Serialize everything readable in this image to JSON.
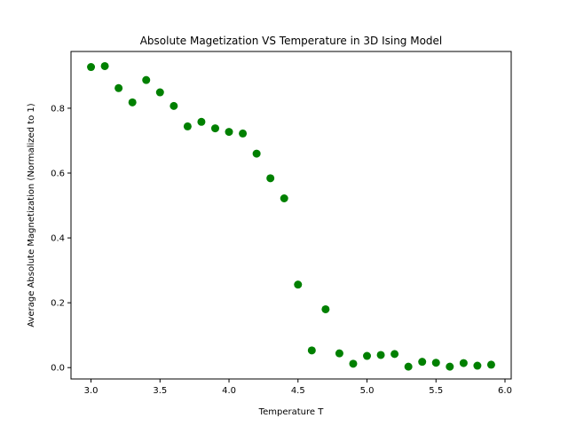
{
  "chart_data": {
    "type": "scatter",
    "title": "Absolute Magetization VS Temperature in 3D Ising Model",
    "xlabel": "Temperature T",
    "ylabel": "Average Absolute Magnetization (Normalized to 1)",
    "xlim": [
      2.855,
      6.045
    ],
    "ylim": [
      -0.035,
      0.975
    ],
    "xticks": [
      3.0,
      3.5,
      4.0,
      4.5,
      5.0,
      5.5,
      6.0
    ],
    "xtick_labels": [
      "3.0",
      "3.5",
      "4.0",
      "4.5",
      "5.0",
      "5.5",
      "6.0"
    ],
    "yticks": [
      0.0,
      0.2,
      0.4,
      0.6,
      0.8
    ],
    "ytick_labels": [
      "0.0",
      "0.2",
      "0.4",
      "0.6",
      "0.8"
    ],
    "grid": false,
    "marker_color": "#008000",
    "series": [
      {
        "x": [
          3.0,
          3.1,
          3.2,
          3.3,
          3.4,
          3.5,
          3.6,
          3.7,
          3.8,
          3.9,
          4.0,
          4.1,
          4.2,
          4.3,
          4.4,
          4.5,
          4.6,
          4.7,
          4.8,
          4.9,
          5.0,
          5.1,
          5.2,
          5.3,
          5.4,
          5.5,
          5.6,
          5.7,
          5.8,
          5.9
        ],
        "y": [
          0.927,
          0.93,
          0.862,
          0.818,
          0.887,
          0.849,
          0.807,
          0.744,
          0.758,
          0.738,
          0.727,
          0.722,
          0.66,
          0.584,
          0.522,
          0.256,
          0.053,
          0.18,
          0.044,
          0.012,
          0.036,
          0.039,
          0.042,
          0.003,
          0.018,
          0.015,
          0.003,
          0.014,
          0.006,
          0.009
        ]
      }
    ]
  }
}
